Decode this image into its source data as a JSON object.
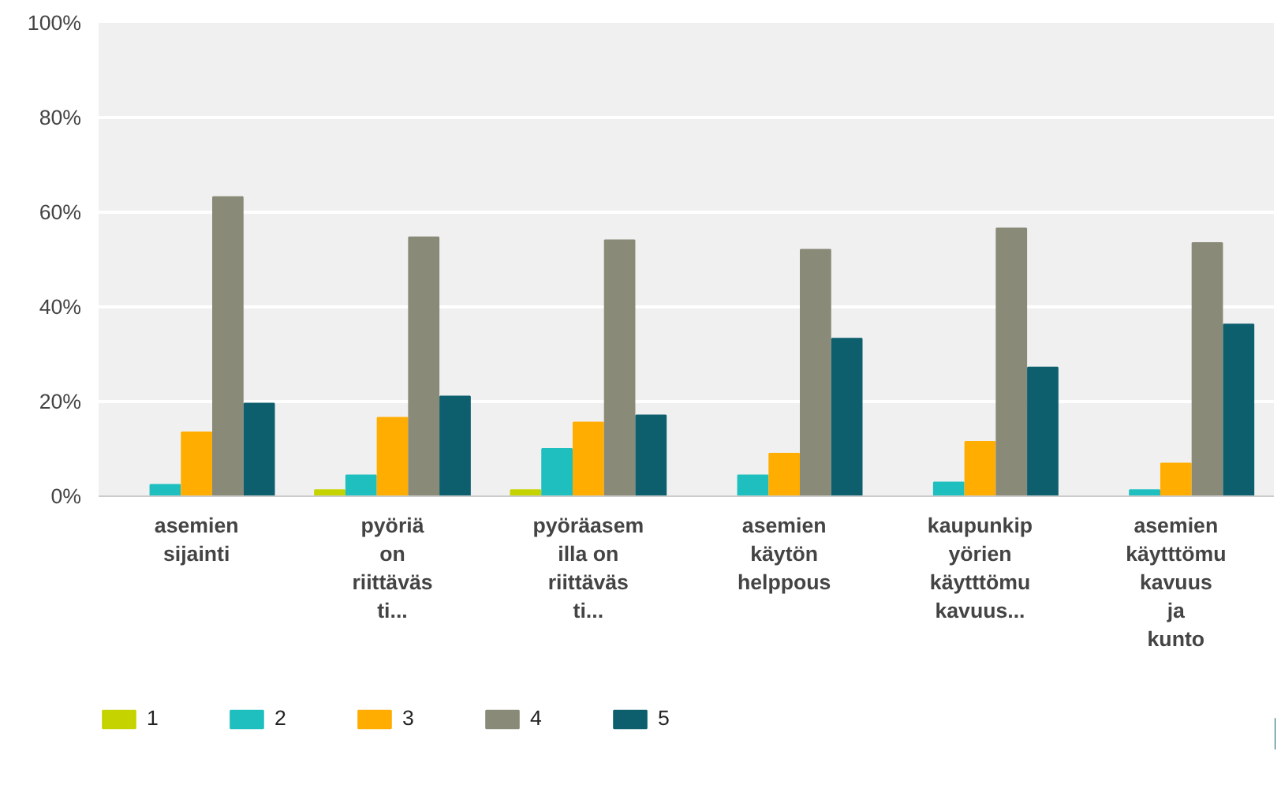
{
  "chart_data": {
    "type": "bar",
    "categories": [
      "asemien\nsijainti",
      "pyöriä\non\nriittäväs\nti...",
      "pyöräasem\nilla on\nriittäväs\nti...",
      "asemien\nkäytön\nhelppous",
      "kaupunkip\nyörien\nkäytttömu\nkavuus...",
      "asemien\nkäytttömu\nkavuus\nja\nkunto"
    ],
    "series": [
      {
        "name": "1",
        "color": "#c5d300",
        "values": [
          0,
          1.3,
          1.3,
          0,
          0,
          0
        ]
      },
      {
        "name": "2",
        "color": "#1fbfbf",
        "values": [
          2.4,
          4.4,
          10,
          4.4,
          2.9,
          1.3
        ]
      },
      {
        "name": "3",
        "color": "#ffad00",
        "values": [
          13.5,
          16.6,
          15.6,
          9,
          11.5,
          6.9
        ]
      },
      {
        "name": "4",
        "color": "#8a8a78",
        "values": [
          63.2,
          54.7,
          54.1,
          52.1,
          56.6,
          53.5
        ]
      },
      {
        "name": "5",
        "color": "#0e5f6e",
        "values": [
          19.6,
          21.1,
          17.1,
          33.3,
          27.2,
          36.3
        ]
      }
    ],
    "ylim": [
      0,
      100
    ],
    "yticks": [
      {
        "value": 0,
        "label": "0%"
      },
      {
        "value": 20,
        "label": "20%"
      },
      {
        "value": 40,
        "label": "40%"
      },
      {
        "value": 60,
        "label": "60%"
      },
      {
        "value": 80,
        "label": "80%"
      },
      {
        "value": 100,
        "label": "100%"
      }
    ],
    "grid": "y",
    "legend": "bottom left"
  }
}
